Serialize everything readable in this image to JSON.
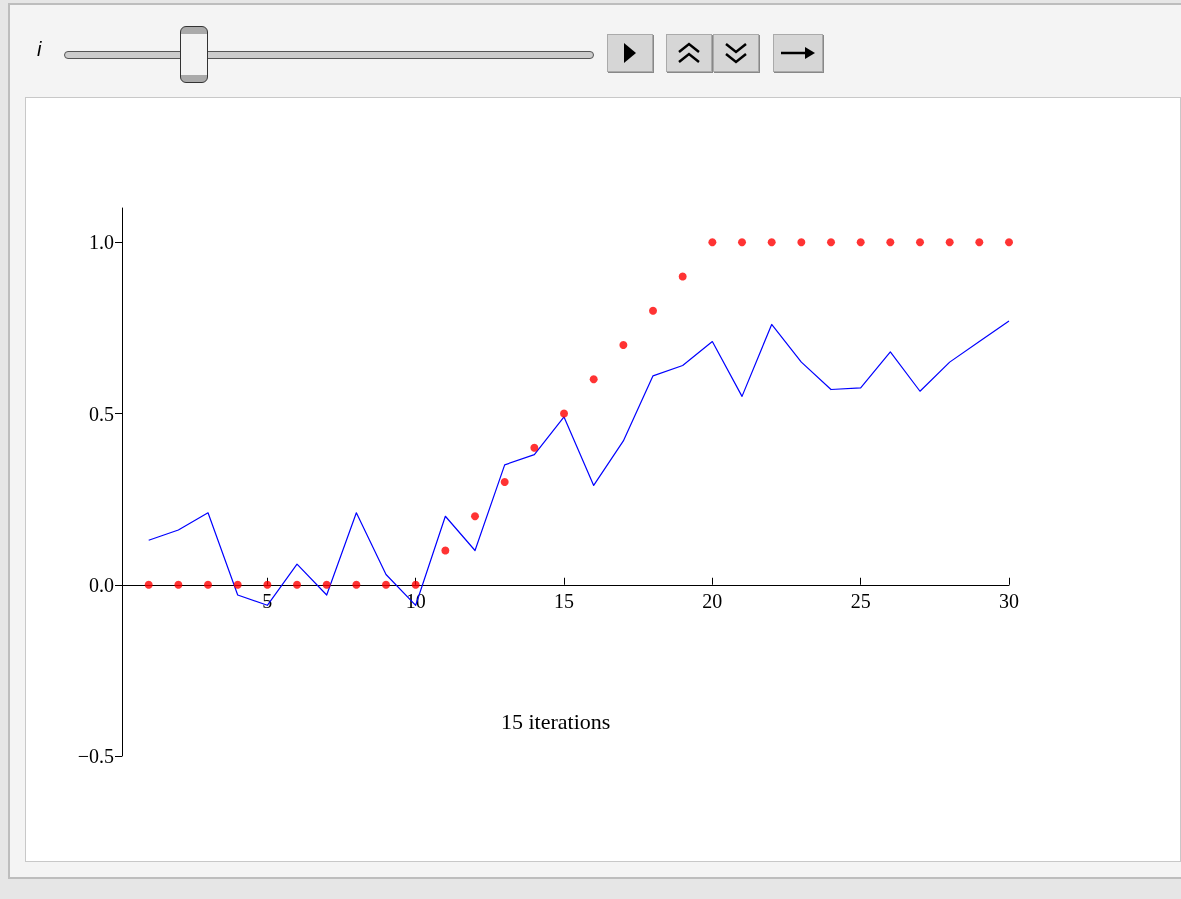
{
  "chart_data": {
    "type": "line",
    "annotations": [
      "15 iterations",
      "i"
    ],
    "xlim": [
      0.1,
      30
    ],
    "xticks": [
      5,
      10,
      15,
      20,
      25,
      30
    ],
    "ylim": [
      -0.5,
      1.1
    ],
    "yticks": [
      {
        "value": -0.5,
        "label": "−0.5"
      },
      {
        "value": 0,
        "label": "0.0"
      },
      {
        "value": 0.5,
        "label": "0.5"
      },
      {
        "value": 1,
        "label": "1.0"
      }
    ],
    "series": [
      {
        "color": "#0000ff",
        "marker": "none",
        "x": [
          1,
          2,
          3,
          4,
          5,
          6,
          7,
          8,
          9,
          10,
          11,
          12,
          13,
          14,
          15,
          16,
          17,
          18,
          19,
          20,
          21,
          22,
          23,
          24,
          25,
          26,
          27,
          28,
          29,
          30
        ],
        "values": [
          0.13,
          0.16,
          0.21,
          -0.03,
          -0.06,
          0.06,
          -0.03,
          0.21,
          0.03,
          -0.06,
          0.2,
          0.1,
          0.35,
          0.38,
          0.49,
          0.29,
          0.42,
          0.61,
          0.64,
          0.71,
          0.55,
          0.76,
          0.65,
          0.57,
          0.575,
          0.68,
          0.565,
          0.65,
          0.71,
          0.77
        ]
      },
      {
        "type": "scatter",
        "color": "#ff0000",
        "marker": "circle",
        "x": [
          1,
          2,
          3,
          4,
          5,
          6,
          7,
          8,
          9,
          10,
          11,
          12,
          13,
          14,
          15,
          16,
          17,
          18,
          19,
          20,
          21,
          22,
          23,
          24,
          25,
          26,
          27,
          28,
          29,
          30
        ],
        "values": [
          0,
          0,
          0,
          0,
          0,
          0,
          0,
          0,
          0,
          0,
          0.1,
          0.2,
          0.3,
          0.4,
          0.5,
          0.6,
          0.7,
          0.8,
          0.9,
          1,
          1,
          1,
          1,
          1,
          1,
          1,
          1,
          1,
          1,
          1
        ]
      }
    ]
  }
}
